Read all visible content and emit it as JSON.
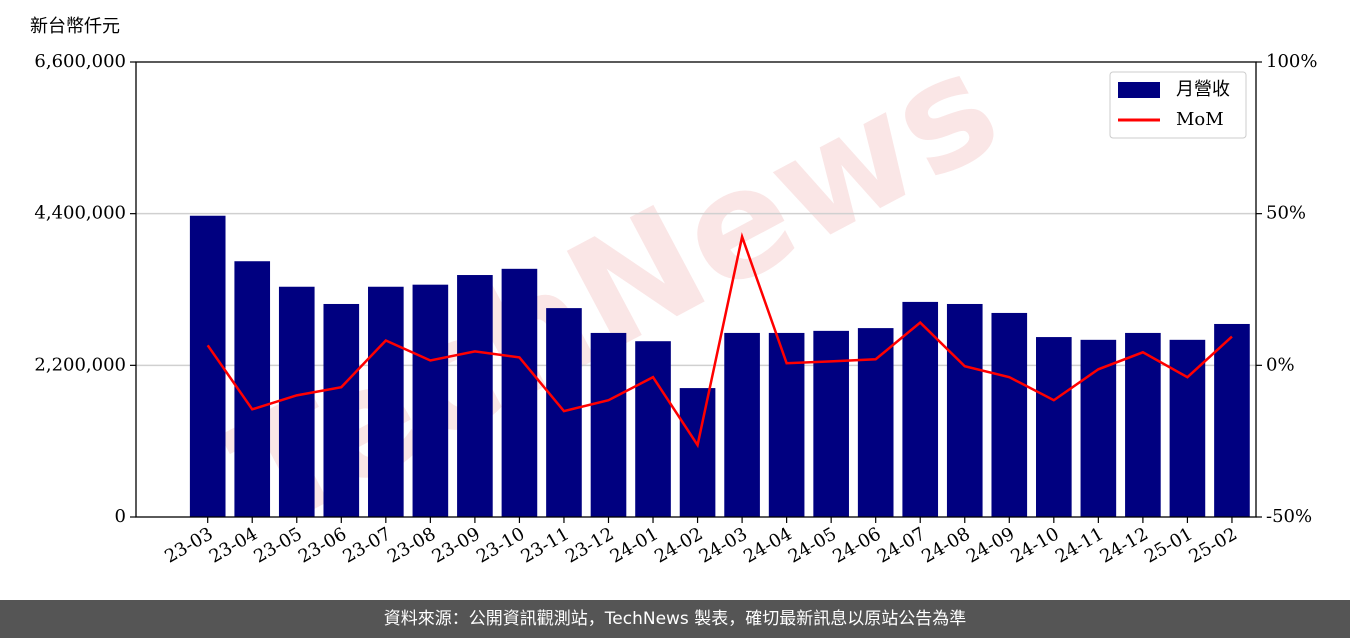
{
  "chart_data": {
    "type": "bar",
    "y_label": "新台幣仟元",
    "watermark": "TechNews",
    "source": "資料來源：公開資訊觀測站，TechNews 製表，確切最新訊息以原站公告為準",
    "categories": [
      "23-03",
      "23-04",
      "23-05",
      "23-06",
      "23-07",
      "23-08",
      "23-09",
      "23-10",
      "23-11",
      "23-12",
      "24-01",
      "24-02",
      "24-03",
      "24-04",
      "24-05",
      "24-06",
      "24-07",
      "24-08",
      "24-09",
      "24-10",
      "24-11",
      "24-12",
      "25-01",
      "25-02"
    ],
    "series": [
      {
        "name": "月營收",
        "type": "bar",
        "color": "#000080",
        "values": [
          4370000,
          3710000,
          3340000,
          3090000,
          3340000,
          3370000,
          3510000,
          3600000,
          3030000,
          2670000,
          2550000,
          1870000,
          2670000,
          2670000,
          2700000,
          2740000,
          3120000,
          3090000,
          2960000,
          2610000,
          2570000,
          2670000,
          2570000,
          2800000
        ]
      },
      {
        "name": "MoM",
        "type": "line",
        "color": "#ff0000",
        "axis": "y2",
        "values": [
          6.6,
          -14.5,
          -9.9,
          -7.2,
          8.2,
          1.6,
          4.6,
          2.6,
          -15.1,
          -11.5,
          -3.9,
          -26.3,
          42.4,
          0.7,
          1.3,
          2.0,
          14.1,
          -0.3,
          -3.9,
          -11.5,
          -1.3,
          4.3,
          -3.9,
          9.5
        ]
      }
    ],
    "ylim": [
      0,
      6600000
    ],
    "yticks": [
      0,
      {
        "value": 2200000,
        "label": "2,200,000"
      },
      {
        "value": 4400000,
        "label": "4,400,000"
      },
      {
        "value": 6600000,
        "label": "6,600,000"
      }
    ],
    "y2lim": [
      -50,
      100
    ],
    "y2ticks": [
      {
        "value": -50,
        "label": "-50%"
      },
      {
        "value": 0,
        "label": "0%"
      },
      {
        "value": 50,
        "label": "50%"
      },
      {
        "value": 100,
        "label": "100%"
      }
    ],
    "grid": true,
    "legend": "upper right"
  }
}
